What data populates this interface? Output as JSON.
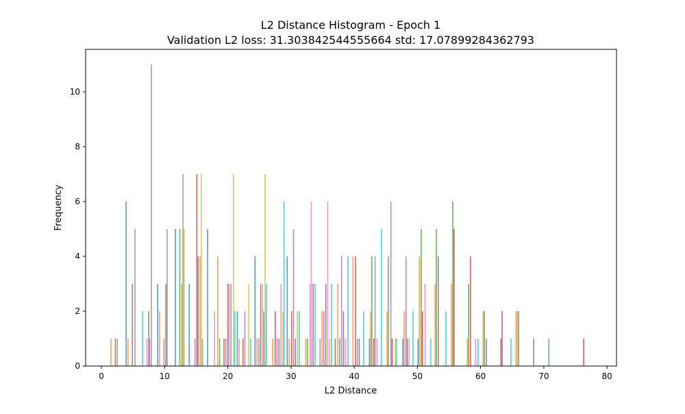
{
  "chart_data": {
    "type": "bar",
    "title": "L2 Distance Histogram - Epoch 1",
    "subtitle": "Validation L2 loss: 31.303842544555664 std: 17.07899284362793",
    "xlabel": "L2 Distance",
    "ylabel": "Frequency",
    "xlim": [
      -2.5,
      81.5
    ],
    "ylim": [
      0,
      11.55
    ],
    "xticks": [
      "0",
      "10",
      "20",
      "30",
      "40",
      "50",
      "60",
      "70",
      "80"
    ],
    "yticks": [
      "0",
      "2",
      "4",
      "6",
      "8",
      "10"
    ],
    "grid": false,
    "legend": "none",
    "palette": [
      "#1f77b4",
      "#ff7f0e",
      "#2ca02c",
      "#d62728",
      "#9467bd",
      "#8c564b",
      "#e377c2",
      "#7f7f7f",
      "#bcbd22",
      "#17becf"
    ],
    "bars": [
      {
        "x": 1.5,
        "value": 1,
        "color": "#ff7f0e"
      },
      {
        "x": 2.2,
        "value": 1,
        "color": "#8c564b"
      },
      {
        "x": 2.5,
        "value": 1,
        "color": "#7f7f7f"
      },
      {
        "x": 3.9,
        "value": 6,
        "color": "#1f77b4"
      },
      {
        "x": 4.2,
        "value": 1,
        "color": "#ff7f0e"
      },
      {
        "x": 4.9,
        "value": 3,
        "color": "#8c564b"
      },
      {
        "x": 5.3,
        "value": 5,
        "color": "#7f7f7f"
      },
      {
        "x": 6.5,
        "value": 2,
        "color": "#17becf"
      },
      {
        "x": 7.2,
        "value": 1,
        "color": "#e377c2"
      },
      {
        "x": 7.5,
        "value": 2,
        "color": "#8c564b"
      },
      {
        "x": 7.6,
        "value": 1,
        "color": "#9467bd"
      },
      {
        "x": 7.9,
        "value": 11,
        "color": "#7f7f7f"
      },
      {
        "x": 8.9,
        "value": 3,
        "color": "#1f77b4"
      },
      {
        "x": 9.2,
        "value": 2,
        "color": "#ff7f0e"
      },
      {
        "x": 9.9,
        "value": 1,
        "color": "#9467bd"
      },
      {
        "x": 10.2,
        "value": 3,
        "color": "#8c564b"
      },
      {
        "x": 10.4,
        "value": 5,
        "color": "#7f7f7f"
      },
      {
        "x": 11.7,
        "value": 5,
        "color": "#1f77b4"
      },
      {
        "x": 12.4,
        "value": 5,
        "color": "#2ca02c"
      },
      {
        "x": 12.7,
        "value": 3,
        "color": "#ff7f0e"
      },
      {
        "x": 12.9,
        "value": 7,
        "color": "#7f7f7f"
      },
      {
        "x": 13.1,
        "value": 5,
        "color": "#bcbd22"
      },
      {
        "x": 13.9,
        "value": 3,
        "color": "#1f77b4"
      },
      {
        "x": 14.8,
        "value": 1,
        "color": "#9467bd"
      },
      {
        "x": 15.1,
        "value": 7,
        "color": "#d62728"
      },
      {
        "x": 15.3,
        "value": 4,
        "color": "#8c564b"
      },
      {
        "x": 15.6,
        "value": 4,
        "color": "#ff7f0e"
      },
      {
        "x": 15.8,
        "value": 7,
        "color": "#bcbd22"
      },
      {
        "x": 16.0,
        "value": 1,
        "color": "#17becf"
      },
      {
        "x": 16.8,
        "value": 5,
        "color": "#1f77b4"
      },
      {
        "x": 17.9,
        "value": 2,
        "color": "#e377c2"
      },
      {
        "x": 18.4,
        "value": 4,
        "color": "#ff7f0e"
      },
      {
        "x": 18.7,
        "value": 1,
        "color": "#2ca02c"
      },
      {
        "x": 19.4,
        "value": 1,
        "color": "#d62728"
      },
      {
        "x": 19.7,
        "value": 1,
        "color": "#9467bd"
      },
      {
        "x": 20.0,
        "value": 3,
        "color": "#8c564b"
      },
      {
        "x": 20.2,
        "value": 3,
        "color": "#e377c2"
      },
      {
        "x": 20.5,
        "value": 3,
        "color": "#7f7f7f"
      },
      {
        "x": 20.9,
        "value": 7,
        "color": "#bcbd22"
      },
      {
        "x": 21.1,
        "value": 2,
        "color": "#17becf"
      },
      {
        "x": 21.5,
        "value": 2,
        "color": "#1f77b4"
      },
      {
        "x": 21.8,
        "value": 1,
        "color": "#ff7f0e"
      },
      {
        "x": 22.4,
        "value": 1,
        "color": "#d62728"
      },
      {
        "x": 22.7,
        "value": 2,
        "color": "#9467bd"
      },
      {
        "x": 23.3,
        "value": 3,
        "color": "#bcbd22"
      },
      {
        "x": 23.6,
        "value": 1,
        "color": "#17becf"
      },
      {
        "x": 24.3,
        "value": 4,
        "color": "#1f77b4"
      },
      {
        "x": 24.6,
        "value": 1,
        "color": "#ff7f0e"
      },
      {
        "x": 24.9,
        "value": 1,
        "color": "#9467bd"
      },
      {
        "x": 25.2,
        "value": 3,
        "color": "#8c564b"
      },
      {
        "x": 25.5,
        "value": 3,
        "color": "#e377c2"
      },
      {
        "x": 25.7,
        "value": 2,
        "color": "#7f7f7f"
      },
      {
        "x": 25.9,
        "value": 7,
        "color": "#bcbd22"
      },
      {
        "x": 26.1,
        "value": 3,
        "color": "#17becf"
      },
      {
        "x": 27.1,
        "value": 1,
        "color": "#ff7f0e"
      },
      {
        "x": 27.5,
        "value": 2,
        "color": "#d62728"
      },
      {
        "x": 27.8,
        "value": 1,
        "color": "#9467bd"
      },
      {
        "x": 28.1,
        "value": 1,
        "color": "#8c564b"
      },
      {
        "x": 28.4,
        "value": 3,
        "color": "#e377c2"
      },
      {
        "x": 28.7,
        "value": 2,
        "color": "#bcbd22"
      },
      {
        "x": 28.9,
        "value": 6,
        "color": "#17becf"
      },
      {
        "x": 29.4,
        "value": 4,
        "color": "#1f77b4"
      },
      {
        "x": 29.7,
        "value": 1,
        "color": "#ff7f0e"
      },
      {
        "x": 30.1,
        "value": 2,
        "color": "#d62728"
      },
      {
        "x": 30.4,
        "value": 5,
        "color": "#9467bd"
      },
      {
        "x": 30.7,
        "value": 1,
        "color": "#8c564b"
      },
      {
        "x": 31.0,
        "value": 2,
        "color": "#bcbd22"
      },
      {
        "x": 31.3,
        "value": 2,
        "color": "#17becf"
      },
      {
        "x": 32.3,
        "value": 1,
        "color": "#ff7f0e"
      },
      {
        "x": 32.6,
        "value": 1,
        "color": "#2ca02c"
      },
      {
        "x": 33.0,
        "value": 3,
        "color": "#e377c2"
      },
      {
        "x": 33.2,
        "value": 6,
        "color": "#e377c2"
      },
      {
        "x": 33.5,
        "value": 3,
        "color": "#8c564b"
      },
      {
        "x": 33.8,
        "value": 3,
        "color": "#17becf"
      },
      {
        "x": 34.6,
        "value": 1,
        "color": "#7f7f7f"
      },
      {
        "x": 34.9,
        "value": 2,
        "color": "#ff7f0e"
      },
      {
        "x": 35.2,
        "value": 2,
        "color": "#9467bd"
      },
      {
        "x": 35.5,
        "value": 3,
        "color": "#8c564b"
      },
      {
        "x": 35.8,
        "value": 6,
        "color": "#e377c2"
      },
      {
        "x": 36.1,
        "value": 1,
        "color": "#bcbd22"
      },
      {
        "x": 36.4,
        "value": 3,
        "color": "#17becf"
      },
      {
        "x": 37.0,
        "value": 1,
        "color": "#d62728"
      },
      {
        "x": 37.4,
        "value": 3,
        "color": "#ff7f0e"
      },
      {
        "x": 37.7,
        "value": 1,
        "color": "#2ca02c"
      },
      {
        "x": 38.0,
        "value": 4,
        "color": "#9467bd"
      },
      {
        "x": 38.3,
        "value": 2,
        "color": "#8c564b"
      },
      {
        "x": 38.6,
        "value": 1,
        "color": "#e377c2"
      },
      {
        "x": 39.0,
        "value": 4,
        "color": "#17becf"
      },
      {
        "x": 39.8,
        "value": 4,
        "color": "#ff7f0e"
      },
      {
        "x": 40.2,
        "value": 4,
        "color": "#d62728"
      },
      {
        "x": 40.5,
        "value": 1,
        "color": "#9467bd"
      },
      {
        "x": 40.8,
        "value": 1,
        "color": "#8c564b"
      },
      {
        "x": 41.5,
        "value": 2,
        "color": "#17becf"
      },
      {
        "x": 42.4,
        "value": 1,
        "color": "#1f77b4"
      },
      {
        "x": 42.6,
        "value": 2,
        "color": "#ff7f0e"
      },
      {
        "x": 42.8,
        "value": 4,
        "color": "#2ca02c"
      },
      {
        "x": 43.1,
        "value": 1,
        "color": "#d62728"
      },
      {
        "x": 43.3,
        "value": 4,
        "color": "#9467bd"
      },
      {
        "x": 43.6,
        "value": 1,
        "color": "#e377c2"
      },
      {
        "x": 44.3,
        "value": 5,
        "color": "#17becf"
      },
      {
        "x": 45.2,
        "value": 2,
        "color": "#ff7f0e"
      },
      {
        "x": 45.4,
        "value": 4,
        "color": "#2ca02c"
      },
      {
        "x": 45.8,
        "value": 6,
        "color": "#9467bd"
      },
      {
        "x": 46.0,
        "value": 1,
        "color": "#d62728"
      },
      {
        "x": 46.5,
        "value": 1,
        "color": "#bcbd22"
      },
      {
        "x": 46.7,
        "value": 1,
        "color": "#17becf"
      },
      {
        "x": 47.7,
        "value": 1,
        "color": "#1f77b4"
      },
      {
        "x": 47.9,
        "value": 2,
        "color": "#ff7f0e"
      },
      {
        "x": 48.2,
        "value": 4,
        "color": "#9467bd"
      },
      {
        "x": 48.4,
        "value": 1,
        "color": "#8c564b"
      },
      {
        "x": 48.7,
        "value": 1,
        "color": "#e377c2"
      },
      {
        "x": 49.3,
        "value": 2,
        "color": "#17becf"
      },
      {
        "x": 50.1,
        "value": 1,
        "color": "#1f77b4"
      },
      {
        "x": 50.3,
        "value": 4,
        "color": "#ff7f0e"
      },
      {
        "x": 50.6,
        "value": 5,
        "color": "#2ca02c"
      },
      {
        "x": 50.8,
        "value": 2,
        "color": "#d62728"
      },
      {
        "x": 51.2,
        "value": 3,
        "color": "#e377c2"
      },
      {
        "x": 52.1,
        "value": 1,
        "color": "#17becf"
      },
      {
        "x": 52.8,
        "value": 3,
        "color": "#ff7f0e"
      },
      {
        "x": 53.0,
        "value": 5,
        "color": "#2ca02c"
      },
      {
        "x": 53.3,
        "value": 4,
        "color": "#8c564b"
      },
      {
        "x": 54.5,
        "value": 2,
        "color": "#17becf"
      },
      {
        "x": 55.4,
        "value": 3,
        "color": "#ff7f0e"
      },
      {
        "x": 55.6,
        "value": 6,
        "color": "#2ca02c"
      },
      {
        "x": 55.8,
        "value": 5,
        "color": "#d62728"
      },
      {
        "x": 57.9,
        "value": 1,
        "color": "#ff7f0e"
      },
      {
        "x": 58.1,
        "value": 3,
        "color": "#2ca02c"
      },
      {
        "x": 58.4,
        "value": 4,
        "color": "#d62728"
      },
      {
        "x": 59.2,
        "value": 1,
        "color": "#e377c2"
      },
      {
        "x": 59.6,
        "value": 1,
        "color": "#17becf"
      },
      {
        "x": 60.4,
        "value": 2,
        "color": "#ff7f0e"
      },
      {
        "x": 60.6,
        "value": 2,
        "color": "#2ca02c"
      },
      {
        "x": 60.9,
        "value": 1,
        "color": "#8c564b"
      },
      {
        "x": 63.2,
        "value": 1,
        "color": "#8c564b"
      },
      {
        "x": 63.4,
        "value": 2,
        "color": "#d62728"
      },
      {
        "x": 64.8,
        "value": 1,
        "color": "#17becf"
      },
      {
        "x": 65.6,
        "value": 2,
        "color": "#ff7f0e"
      },
      {
        "x": 65.8,
        "value": 2,
        "color": "#bcbd22"
      },
      {
        "x": 66.0,
        "value": 2,
        "color": "#8c564b"
      },
      {
        "x": 68.4,
        "value": 1,
        "color": "#8c564b"
      },
      {
        "x": 70.8,
        "value": 1,
        "color": "#2ca02c"
      },
      {
        "x": 76.3,
        "value": 1,
        "color": "#d62728"
      }
    ]
  }
}
